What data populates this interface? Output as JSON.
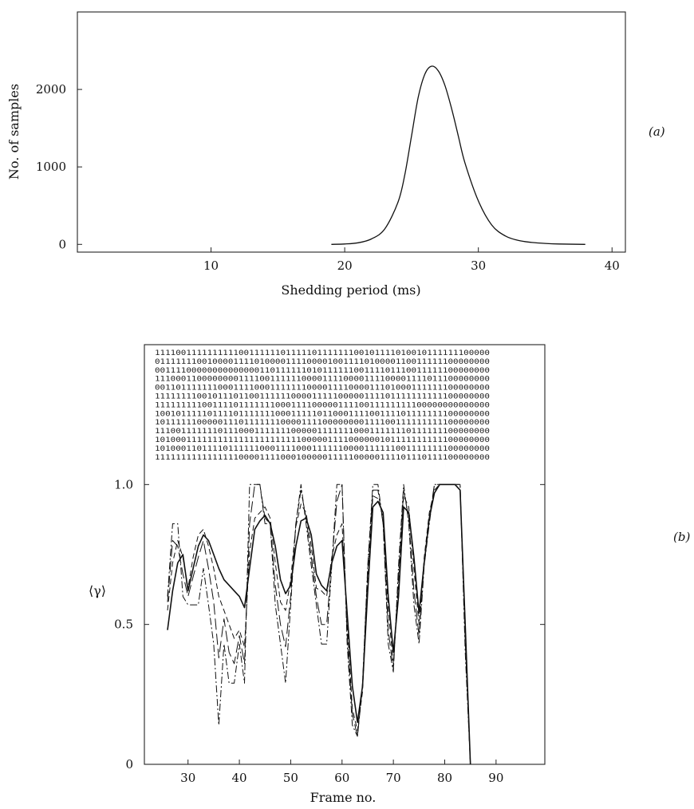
{
  "chart_data": [
    {
      "panel_label": "(a)",
      "type": "line",
      "xlabel": "Shedding period (ms)",
      "ylabel": "No. of samples",
      "xlim": [
        0,
        41
      ],
      "ylim": [
        -100,
        3000
      ],
      "xticks": [
        10,
        20,
        30,
        40
      ],
      "xtick_labels": [
        "10",
        "20",
        "30",
        "40"
      ],
      "yticks": [
        0,
        1000,
        2000
      ],
      "ytick_labels": [
        "0",
        "1000",
        "2000"
      ],
      "grid": false,
      "series": [
        {
          "x": [
            19,
            20,
            21,
            22,
            23,
            24,
            24.5,
            25,
            25.5,
            26,
            26.5,
            27,
            27.5,
            28,
            28.5,
            29,
            30,
            31,
            32,
            33,
            34,
            35,
            36,
            38
          ],
          "y": [
            0,
            5,
            20,
            70,
            200,
            550,
            900,
            1400,
            1900,
            2200,
            2300,
            2240,
            2050,
            1750,
            1400,
            1050,
            560,
            250,
            110,
            50,
            25,
            12,
            5,
            0
          ]
        }
      ]
    },
    {
      "panel_label": "(b)",
      "type": "line",
      "xlabel": "Frame no.",
      "ylabel": "⟨γ⟩",
      "xlim": [
        21.5,
        99.5
      ],
      "ylim": [
        0,
        1.5
      ],
      "xticks": [
        30,
        40,
        50,
        60,
        70,
        80,
        90
      ],
      "xtick_labels": [
        "30",
        "40",
        "50",
        "60",
        "70",
        "80",
        "90"
      ],
      "yticks": [
        0,
        0.5,
        1.0
      ],
      "ytick_labels": [
        "0",
        "0.5",
        "1.0"
      ],
      "grid": false,
      "binary_rows": [
        "1111001111111111001111110111110111111100101111010010111111100000",
        "0111111100100001111010000111100001001111010000110011111100000000",
        "0011110000000000000011011111101011111100111101110011111100000000",
        "1110001100000000111100111111000011110000111100001111011100000000",
        "0011011111110001111000111111100001111000011101000111111100000000",
        "1111111100101110110011111100001111100000111101111111111100000000",
        "1111111110011110111111100011110000011110011111111100000000000000",
        "1001011111011110111111100011111011000111100111101111111100000000",
        "1011111100000111011111110000111100000000111100111111111100000000",
        "1110011111110111000111111100000111111100011111110111111100000000",
        "1010001111111111111111111111000001111000000101111111111100000000",
        "1010001101111011111100011110001111110000111111001111111100000000",
        "1111111111111111000011110001000001111100000111101110111100000000"
      ],
      "series": [
        {
          "line_style": "solid",
          "x": [
            26,
            27,
            28,
            29,
            30,
            31,
            32,
            33,
            34,
            35,
            36,
            37,
            38,
            39,
            40,
            41,
            42,
            43,
            44,
            45,
            46,
            47,
            48,
            49,
            50,
            51,
            52,
            53,
            54,
            55,
            56,
            57,
            58,
            59,
            60,
            61,
            62,
            63,
            64,
            65,
            66,
            67,
            68,
            69,
            70,
            71,
            72,
            73,
            74,
            75,
            76,
            77,
            78,
            79,
            80,
            81,
            82,
            83,
            84,
            85
          ],
          "y": [
            0.48,
            0.62,
            0.72,
            0.75,
            0.62,
            0.7,
            0.78,
            0.82,
            0.8,
            0.75,
            0.7,
            0.66,
            0.64,
            0.62,
            0.6,
            0.56,
            0.7,
            0.84,
            0.87,
            0.89,
            0.86,
            0.78,
            0.66,
            0.61,
            0.64,
            0.78,
            0.87,
            0.88,
            0.82,
            0.68,
            0.64,
            0.62,
            0.72,
            0.78,
            0.8,
            0.54,
            0.28,
            0.15,
            0.28,
            0.62,
            0.92,
            0.94,
            0.9,
            0.6,
            0.4,
            0.6,
            0.92,
            0.9,
            0.74,
            0.54,
            0.72,
            0.88,
            0.97,
            1.0,
            1.0,
            1.0,
            1.0,
            0.98,
            0.5,
            0.0
          ]
        },
        {
          "line_style": "dashed",
          "x": [
            26,
            27,
            28,
            29,
            30,
            31,
            32,
            33,
            34,
            35,
            36,
            37,
            38,
            39,
            40,
            41,
            42,
            43,
            44,
            45,
            46,
            47,
            48,
            49,
            50,
            51,
            52,
            53,
            54,
            55,
            56,
            57,
            58,
            59,
            60,
            61,
            62,
            63,
            64,
            65,
            66,
            67,
            68,
            69,
            70,
            71,
            72,
            73,
            74,
            75,
            76,
            77,
            78,
            79,
            80,
            81,
            82,
            83,
            84,
            85
          ],
          "y": [
            0.55,
            0.72,
            0.8,
            0.74,
            0.63,
            0.74,
            0.82,
            0.84,
            0.78,
            0.7,
            0.6,
            0.55,
            0.5,
            0.45,
            0.48,
            0.42,
            0.76,
            0.88,
            0.9,
            0.92,
            0.88,
            0.72,
            0.58,
            0.55,
            0.66,
            0.85,
            0.93,
            0.9,
            0.78,
            0.63,
            0.62,
            0.6,
            0.74,
            0.82,
            0.86,
            0.5,
            0.2,
            0.12,
            0.26,
            0.66,
            0.96,
            0.95,
            0.88,
            0.55,
            0.36,
            0.64,
            0.96,
            0.92,
            0.7,
            0.5,
            0.74,
            0.9,
            0.98,
            1.0,
            1.0,
            1.0,
            1.0,
            0.98,
            0.48,
            0.0
          ]
        },
        {
          "line_style": "dash-dot",
          "x": [
            26,
            27,
            28,
            29,
            30,
            31,
            32,
            33,
            34,
            35,
            36,
            37,
            38,
            39,
            40,
            41,
            42,
            43,
            44,
            45,
            46,
            47,
            48,
            49,
            50,
            51,
            52,
            53,
            54,
            55,
            56,
            57,
            58,
            59,
            60,
            61,
            62,
            63,
            64,
            65,
            66,
            67,
            68,
            69,
            70,
            71,
            72,
            73,
            74,
            75,
            76,
            77,
            78,
            79,
            80,
            81,
            82,
            83,
            84,
            85
          ],
          "y": [
            0.6,
            0.86,
            0.86,
            0.6,
            0.57,
            0.57,
            0.57,
            0.7,
            0.57,
            0.43,
            0.14,
            0.43,
            0.29,
            0.29,
            0.43,
            0.29,
            1.0,
            1.0,
            1.0,
            0.86,
            0.86,
            0.57,
            0.43,
            0.29,
            0.57,
            0.86,
            1.0,
            0.86,
            0.71,
            0.57,
            0.43,
            0.43,
            0.71,
            1.0,
            1.0,
            0.43,
            0.14,
            0.1,
            0.29,
            0.71,
            1.0,
            1.0,
            0.86,
            0.43,
            0.33,
            0.71,
            1.0,
            0.86,
            0.57,
            0.43,
            0.71,
            0.86,
            1.0,
            1.0,
            1.0,
            1.0,
            1.0,
            1.0,
            0.4,
            0.0
          ]
        },
        {
          "line_style": "dashed-long",
          "x": [
            26,
            27,
            28,
            29,
            30,
            31,
            32,
            33,
            34,
            35,
            36,
            37,
            38,
            39,
            40,
            41,
            42,
            43,
            44,
            45,
            46,
            47,
            48,
            49,
            50,
            51,
            52,
            53,
            54,
            55,
            56,
            57,
            58,
            59,
            60,
            61,
            62,
            63,
            64,
            65,
            66,
            67,
            68,
            69,
            70,
            71,
            72,
            73,
            74,
            75,
            76,
            77,
            78,
            79,
            80,
            81,
            82,
            83,
            84,
            85
          ],
          "y": [
            0.58,
            0.8,
            0.78,
            0.68,
            0.6,
            0.67,
            0.74,
            0.8,
            0.7,
            0.58,
            0.38,
            0.52,
            0.4,
            0.36,
            0.46,
            0.36,
            0.86,
            1.0,
            1.0,
            0.88,
            0.86,
            0.64,
            0.5,
            0.42,
            0.6,
            0.86,
            0.98,
            0.88,
            0.74,
            0.6,
            0.5,
            0.5,
            0.72,
            0.94,
            1.0,
            0.46,
            0.18,
            0.1,
            0.28,
            0.7,
            0.98,
            0.98,
            0.86,
            0.48,
            0.34,
            0.68,
            0.98,
            0.88,
            0.62,
            0.46,
            0.72,
            0.88,
            1.0,
            1.0,
            1.0,
            1.0,
            1.0,
            1.0,
            0.44,
            0.0
          ]
        }
      ]
    }
  ]
}
